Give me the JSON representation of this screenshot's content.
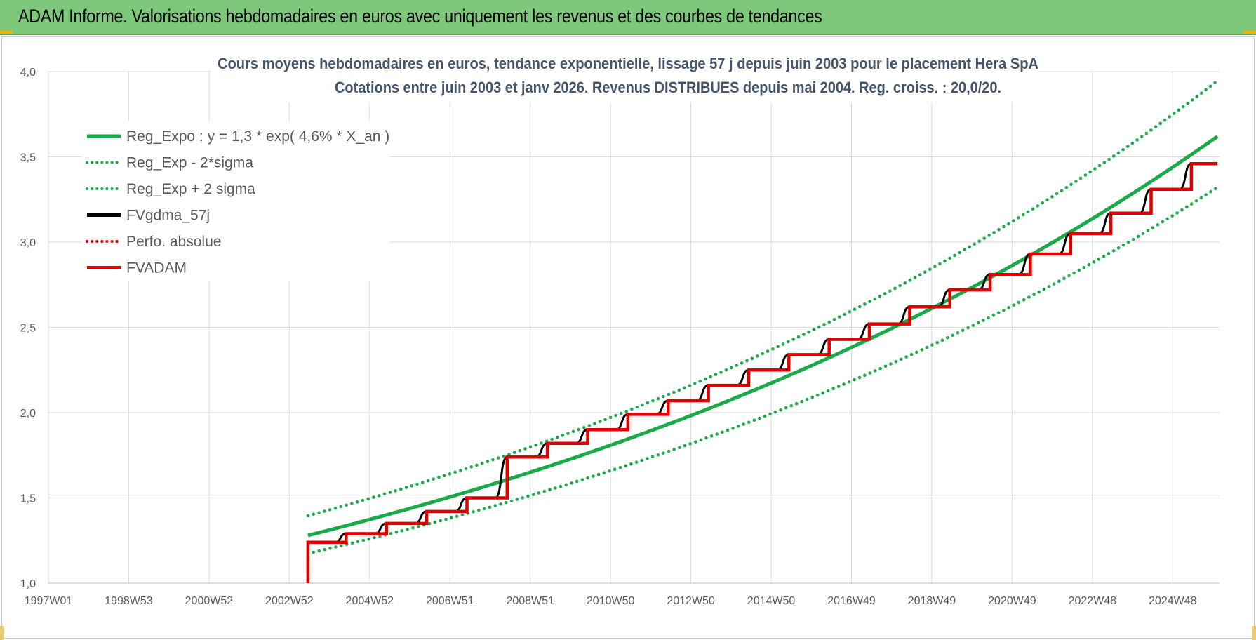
{
  "header": {
    "title": "ADAM Informe. Valorisations hebdomadaires en euros avec uniquement les revenus et des courbes de tendances"
  },
  "chart_data": {
    "type": "line",
    "title": "Cours moyens hebdomadaires en euros, tendance exponentielle, lissage 57 j depuis juin 2003 pour le placement Hera SpA",
    "subtitle": "Cotations entre juin 2003 et janv 2026. Revenus DISTRIBUES depuis mai 2004. Reg. croiss. : 20,0/20.",
    "xlabel": "",
    "ylabel": "",
    "x_tick_labels": [
      "1997W01",
      "1998W53",
      "2000W52",
      "2002W52",
      "2004W52",
      "2006W51",
      "2008W51",
      "2010W50",
      "2012W50",
      "2014W50",
      "2016W49",
      "2018W49",
      "2020W49",
      "2022W48",
      "2024W48"
    ],
    "x_range_years": [
      1997.0,
      2026.1
    ],
    "ylim": [
      1.0,
      4.0
    ],
    "y_ticks": [
      1.0,
      1.5,
      2.0,
      2.5,
      3.0,
      3.5,
      4.0
    ],
    "y_tick_labels": [
      "1,0",
      "1,5",
      "2,0",
      "2,5",
      "3,0",
      "3,5",
      "4,0"
    ],
    "grid": true,
    "legend_position": "top-left",
    "regression": {
      "a": 1.28,
      "rate": 0.046,
      "start_year": 2003.45,
      "end_year": 2026.05,
      "sigma_factor": 1.09
    },
    "series": [
      {
        "name": "Reg_Expo : y = 1,3 * exp( 4,6% *  X_an )",
        "color": "#1aaa4a",
        "style": "solid"
      },
      {
        "name": "Reg_Exp - 2*sigma",
        "color": "#1aaa4a",
        "style": "dotted"
      },
      {
        "name": "Reg_Exp + 2 sigma",
        "color": "#1aaa4a",
        "style": "dotted"
      },
      {
        "name": "FVgdma_57j",
        "color": "#000000",
        "style": "solid"
      },
      {
        "name": "Perfo. absolue",
        "color": "#e00000",
        "style": "dotted"
      },
      {
        "name": "FVADAM",
        "color": "#e00000",
        "style": "solid",
        "steps": [
          {
            "year": 2003.45,
            "value": 1.24
          },
          {
            "year": 2004.4,
            "value": 1.29
          },
          {
            "year": 2005.4,
            "value": 1.35
          },
          {
            "year": 2006.4,
            "value": 1.42
          },
          {
            "year": 2007.4,
            "value": 1.5
          },
          {
            "year": 2008.4,
            "value": 1.74
          },
          {
            "year": 2009.4,
            "value": 1.82
          },
          {
            "year": 2010.4,
            "value": 1.9
          },
          {
            "year": 2011.4,
            "value": 1.99
          },
          {
            "year": 2012.4,
            "value": 2.07
          },
          {
            "year": 2013.4,
            "value": 2.16
          },
          {
            "year": 2014.4,
            "value": 2.25
          },
          {
            "year": 2015.4,
            "value": 2.34
          },
          {
            "year": 2016.4,
            "value": 2.43
          },
          {
            "year": 2017.4,
            "value": 2.52
          },
          {
            "year": 2018.4,
            "value": 2.62
          },
          {
            "year": 2019.4,
            "value": 2.72
          },
          {
            "year": 2020.4,
            "value": 2.81
          },
          {
            "year": 2021.4,
            "value": 2.93
          },
          {
            "year": 2022.4,
            "value": 3.05
          },
          {
            "year": 2023.4,
            "value": 3.17
          },
          {
            "year": 2024.4,
            "value": 3.31
          },
          {
            "year": 2025.4,
            "value": 3.46
          }
        ],
        "end_year": 2026.05
      }
    ]
  }
}
